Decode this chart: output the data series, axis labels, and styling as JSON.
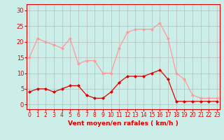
{
  "hours": [
    0,
    1,
    2,
    3,
    4,
    5,
    6,
    7,
    8,
    9,
    10,
    11,
    12,
    13,
    14,
    15,
    16,
    17,
    18,
    19,
    20,
    21,
    22,
    23
  ],
  "wind_avg": [
    4,
    5,
    5,
    4,
    5,
    6,
    6,
    3,
    2,
    2,
    4,
    7,
    9,
    9,
    9,
    10,
    11,
    8,
    1,
    1,
    1,
    1,
    1,
    1
  ],
  "wind_gust": [
    15,
    21,
    20,
    19,
    18,
    21,
    13,
    14,
    14,
    10,
    10,
    18,
    23,
    24,
    24,
    24,
    26,
    21,
    10,
    8,
    3,
    2,
    2,
    2
  ],
  "line_color_avg": "#dd0000",
  "line_color_gust": "#ff9999",
  "marker_size": 2.5,
  "background_color": "#cceee8",
  "grid_color": "#bbbbbb",
  "xlabel": "Vent moyen/en rafales ( km/h )",
  "xlabel_color": "#dd0000",
  "ylabel_ticks": [
    0,
    5,
    10,
    15,
    20,
    25,
    30
  ],
  "ylim": [
    -1.5,
    32
  ],
  "xlim": [
    -0.3,
    23.3
  ]
}
